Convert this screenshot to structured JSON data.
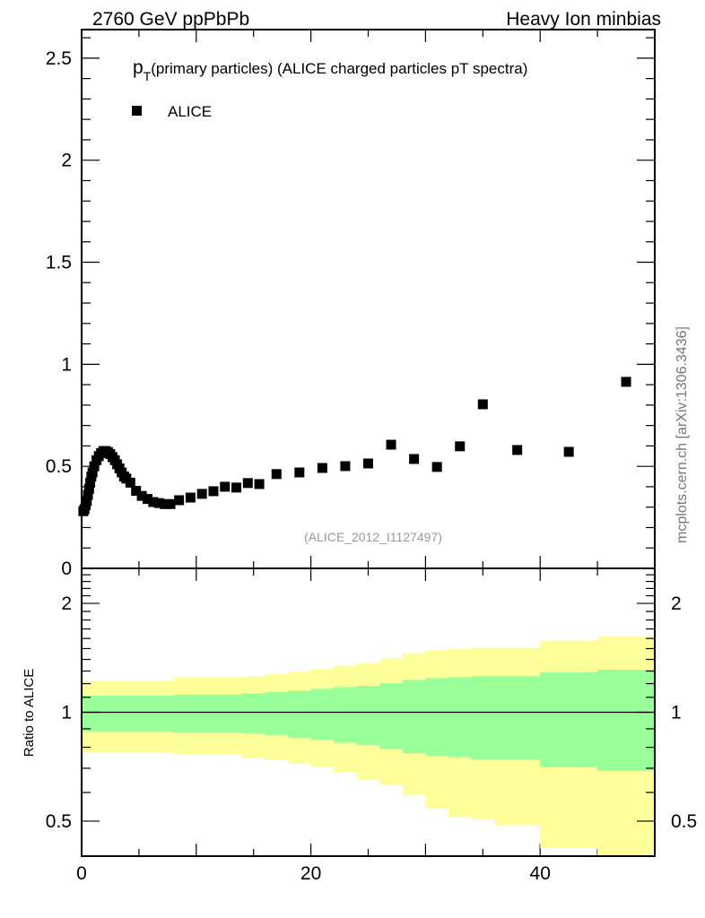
{
  "header": {
    "left": "2760 GeV ppPbPb",
    "right": "Heavy Ion minbias"
  },
  "side_label": "mcplots.cern.ch [arXiv:1306.3436]",
  "chart_data": [
    {
      "type": "scatter",
      "title_main": "p",
      "title_sub": "T",
      "title_rest": "(primary particles) (ALICE charged particles pT spectra)",
      "ref_label": "(ALICE_2012_I1127497)",
      "legend": [
        {
          "name": "ALICE",
          "marker": "square",
          "color": "#000000"
        }
      ],
      "legend_placement": "top-left",
      "xlim": [
        0,
        50
      ],
      "ylim": [
        0,
        2.64
      ],
      "yticks": [
        {
          "v": 0,
          "label": "0"
        },
        {
          "v": 0.5,
          "label": "0.5"
        },
        {
          "v": 1,
          "label": "1"
        },
        {
          "v": 1.5,
          "label": "1.5"
        },
        {
          "v": 2,
          "label": "2"
        },
        {
          "v": 2.5,
          "label": "2.5"
        }
      ],
      "series": [
        {
          "name": "ALICE",
          "points": [
            [
              0.15,
              0.28
            ],
            [
              0.25,
              0.29
            ],
            [
              0.35,
              0.31
            ],
            [
              0.45,
              0.33
            ],
            [
              0.55,
              0.36
            ],
            [
              0.65,
              0.39
            ],
            [
              0.75,
              0.42
            ],
            [
              0.85,
              0.45
            ],
            [
              0.95,
              0.47
            ],
            [
              1.1,
              0.5
            ],
            [
              1.3,
              0.53
            ],
            [
              1.5,
              0.55
            ],
            [
              1.7,
              0.565
            ],
            [
              1.9,
              0.575
            ],
            [
              2.1,
              0.575
            ],
            [
              2.3,
              0.57
            ],
            [
              2.5,
              0.56
            ],
            [
              2.7,
              0.545
            ],
            [
              2.9,
              0.53
            ],
            [
              3.1,
              0.51
            ],
            [
              3.3,
              0.49
            ],
            [
              3.5,
              0.47
            ],
            [
              3.7,
              0.45
            ],
            [
              3.9,
              0.44
            ],
            [
              4.25,
              0.42
            ],
            [
              4.75,
              0.38
            ],
            [
              5.25,
              0.355
            ],
            [
              5.75,
              0.34
            ],
            [
              6.25,
              0.325
            ],
            [
              6.75,
              0.32
            ],
            [
              7.25,
              0.315
            ],
            [
              7.75,
              0.315
            ],
            [
              8.5,
              0.334
            ],
            [
              9.5,
              0.347
            ],
            [
              10.5,
              0.365
            ],
            [
              11.5,
              0.378
            ],
            [
              12.5,
              0.4
            ],
            [
              13.5,
              0.396
            ],
            [
              14.5,
              0.418
            ],
            [
              15.5,
              0.413
            ],
            [
              17,
              0.462
            ],
            [
              19,
              0.47
            ],
            [
              21,
              0.492
            ],
            [
              23,
              0.501
            ],
            [
              25,
              0.514
            ],
            [
              27,
              0.606
            ],
            [
              29,
              0.536
            ],
            [
              31,
              0.497
            ],
            [
              33,
              0.598
            ],
            [
              35,
              0.804
            ],
            [
              38,
              0.58
            ],
            [
              42.5,
              0.571
            ],
            [
              47.5,
              0.914
            ]
          ]
        }
      ]
    },
    {
      "type": "area",
      "ylabel": "Ratio to ALICE",
      "xlim": [
        0,
        50
      ],
      "ylim": [
        0.4,
        2.5
      ],
      "yscale": "log",
      "xticks": [
        {
          "v": 0,
          "label": "0"
        },
        {
          "v": 20,
          "label": "20"
        },
        {
          "v": 40,
          "label": "40"
        }
      ],
      "yticks": [
        {
          "v": 0.5,
          "label": "0.5"
        },
        {
          "v": 1,
          "label": "1"
        },
        {
          "v": 2,
          "label": "2"
        }
      ],
      "reference_line": 1,
      "bin_edges": [
        0,
        8,
        14,
        16,
        18,
        20,
        22,
        24,
        26,
        28,
        30,
        32,
        34,
        36,
        40,
        45,
        50
      ],
      "bands": [
        {
          "name": "total uncertainty",
          "color": "#ffff99",
          "lo": [
            0.776,
            0.765,
            0.747,
            0.74,
            0.723,
            0.706,
            0.682,
            0.653,
            0.631,
            0.591,
            0.543,
            0.515,
            0.506,
            0.487,
            0.421,
            0.37
          ],
          "hi": [
            1.222,
            1.246,
            1.255,
            1.274,
            1.294,
            1.317,
            1.344,
            1.365,
            1.408,
            1.457,
            1.482,
            1.494,
            1.507,
            1.507,
            1.578,
            1.618
          ]
        },
        {
          "name": "statistical uncertainty",
          "color": "#99ff99",
          "lo": [
            0.883,
            0.88,
            0.873,
            0.863,
            0.85,
            0.839,
            0.823,
            0.813,
            0.792,
            0.77,
            0.757,
            0.751,
            0.74,
            0.74,
            0.706,
            0.689
          ],
          "hi": [
            1.111,
            1.119,
            1.128,
            1.137,
            1.147,
            1.161,
            1.174,
            1.183,
            1.203,
            1.229,
            1.243,
            1.25,
            1.258,
            1.258,
            1.289,
            1.311
          ]
        }
      ]
    }
  ]
}
